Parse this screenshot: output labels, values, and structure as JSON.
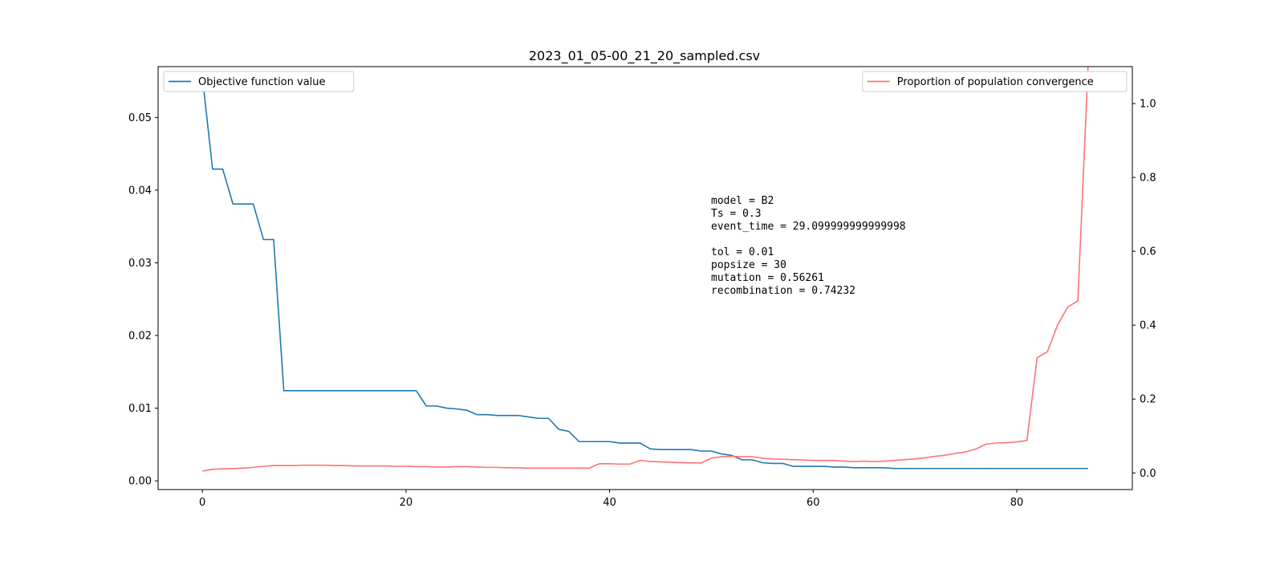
{
  "chart_data": {
    "type": "line",
    "title": "2023_01_05-00_21_20_sampled.csv",
    "xlabel": "",
    "ylabel_left": "",
    "ylabel_right": "",
    "xlim": [
      -4.35,
      91.35
    ],
    "ylim_left": [
      -0.0012,
      0.057
    ],
    "ylim_right": [
      -0.045,
      1.1
    ],
    "x_ticks": [
      0,
      20,
      40,
      60,
      80
    ],
    "y_ticks_left": [
      0.0,
      0.01,
      0.02,
      0.03,
      0.04,
      0.05
    ],
    "y_ticks_right": [
      0.0,
      0.2,
      0.4,
      0.6,
      0.8,
      1.0
    ],
    "y_tick_labels_left": [
      "0.00",
      "0.01",
      "0.02",
      "0.03",
      "0.04",
      "0.05"
    ],
    "y_tick_labels_right": [
      "0.0",
      "0.2",
      "0.4",
      "0.6",
      "0.8",
      "1.0"
    ],
    "grid": false,
    "series": [
      {
        "name": "Objective function value",
        "axis": "left",
        "color": "#1f77b4",
        "legend_position": "upper-left",
        "x": [
          0,
          1,
          2,
          3,
          4,
          5,
          6,
          7,
          8,
          9,
          10,
          11,
          12,
          13,
          14,
          15,
          16,
          17,
          18,
          19,
          20,
          21,
          22,
          23,
          24,
          25,
          26,
          27,
          28,
          29,
          30,
          31,
          32,
          33,
          34,
          35,
          36,
          37,
          38,
          39,
          40,
          41,
          42,
          43,
          44,
          45,
          46,
          47,
          48,
          49,
          50,
          51,
          52,
          53,
          54,
          55,
          56,
          57,
          58,
          59,
          60,
          61,
          62,
          63,
          64,
          65,
          66,
          67,
          68,
          69,
          70,
          71,
          72,
          73,
          74,
          75,
          76,
          77,
          78,
          79,
          80,
          81,
          82,
          83,
          84,
          85,
          86,
          87
        ],
        "values": [
          0.0556,
          0.0429,
          0.0429,
          0.0381,
          0.0381,
          0.0381,
          0.0332,
          0.0332,
          0.0124,
          0.0124,
          0.0124,
          0.0124,
          0.0124,
          0.0124,
          0.0124,
          0.0124,
          0.0124,
          0.0124,
          0.0124,
          0.0124,
          0.0124,
          0.0124,
          0.0103,
          0.0103,
          0.01,
          0.0099,
          0.0097,
          0.0091,
          0.0091,
          0.009,
          0.009,
          0.009,
          0.0088,
          0.0086,
          0.0086,
          0.0071,
          0.0068,
          0.0054,
          0.0054,
          0.0054,
          0.0054,
          0.0052,
          0.0052,
          0.0052,
          0.0044,
          0.0043,
          0.0043,
          0.0043,
          0.0043,
          0.0041,
          0.0041,
          0.0037,
          0.0035,
          0.0029,
          0.0029,
          0.0025,
          0.0024,
          0.0024,
          0.002,
          0.002,
          0.002,
          0.002,
          0.0019,
          0.0019,
          0.0018,
          0.0018,
          0.0018,
          0.0018,
          0.0017,
          0.0017,
          0.0017,
          0.0017,
          0.0017,
          0.0017,
          0.0017,
          0.0017,
          0.0017,
          0.0017,
          0.0017,
          0.0017,
          0.0017,
          0.0017,
          0.0017,
          0.0017,
          0.0017,
          0.0017,
          0.0017,
          0.0017
        ]
      },
      {
        "name": "Proportion of population convergence",
        "axis": "right",
        "color": "#ff7373",
        "legend_position": "upper-right",
        "x": [
          0,
          1,
          2,
          3,
          4,
          5,
          6,
          7,
          8,
          9,
          10,
          11,
          12,
          13,
          14,
          15,
          16,
          17,
          18,
          19,
          20,
          21,
          22,
          23,
          24,
          25,
          26,
          27,
          28,
          29,
          30,
          31,
          32,
          33,
          34,
          35,
          36,
          37,
          38,
          39,
          40,
          41,
          42,
          43,
          44,
          45,
          46,
          47,
          48,
          49,
          50,
          51,
          52,
          53,
          54,
          55,
          56,
          57,
          58,
          59,
          60,
          61,
          62,
          63,
          64,
          65,
          66,
          67,
          68,
          69,
          70,
          71,
          72,
          73,
          74,
          75,
          76,
          77,
          78,
          79,
          80,
          81,
          82,
          83,
          84,
          85,
          86,
          87
        ],
        "values": [
          0.005,
          0.01,
          0.011,
          0.012,
          0.013,
          0.015,
          0.018,
          0.02,
          0.02,
          0.02,
          0.021,
          0.021,
          0.021,
          0.02,
          0.02,
          0.019,
          0.019,
          0.019,
          0.019,
          0.018,
          0.018,
          0.017,
          0.017,
          0.016,
          0.016,
          0.017,
          0.017,
          0.016,
          0.015,
          0.015,
          0.014,
          0.014,
          0.013,
          0.013,
          0.013,
          0.013,
          0.013,
          0.013,
          0.013,
          0.025,
          0.025,
          0.024,
          0.024,
          0.034,
          0.031,
          0.03,
          0.029,
          0.028,
          0.027,
          0.027,
          0.04,
          0.044,
          0.045,
          0.044,
          0.044,
          0.04,
          0.038,
          0.037,
          0.036,
          0.035,
          0.034,
          0.034,
          0.034,
          0.032,
          0.031,
          0.032,
          0.031,
          0.032,
          0.034,
          0.036,
          0.038,
          0.041,
          0.045,
          0.048,
          0.053,
          0.057,
          0.065,
          0.078,
          0.081,
          0.082,
          0.084,
          0.088,
          0.312,
          0.328,
          0.4,
          0.449,
          0.466,
          1.1
        ]
      }
    ],
    "annotation_lines": [
      "model = B2",
      "Ts = 0.3",
      "event_time = 29.099999999999998",
      "",
      "tol = 0.01",
      "popsize = 30",
      "mutation = 0.56261",
      "recombination = 0.74232"
    ]
  }
}
